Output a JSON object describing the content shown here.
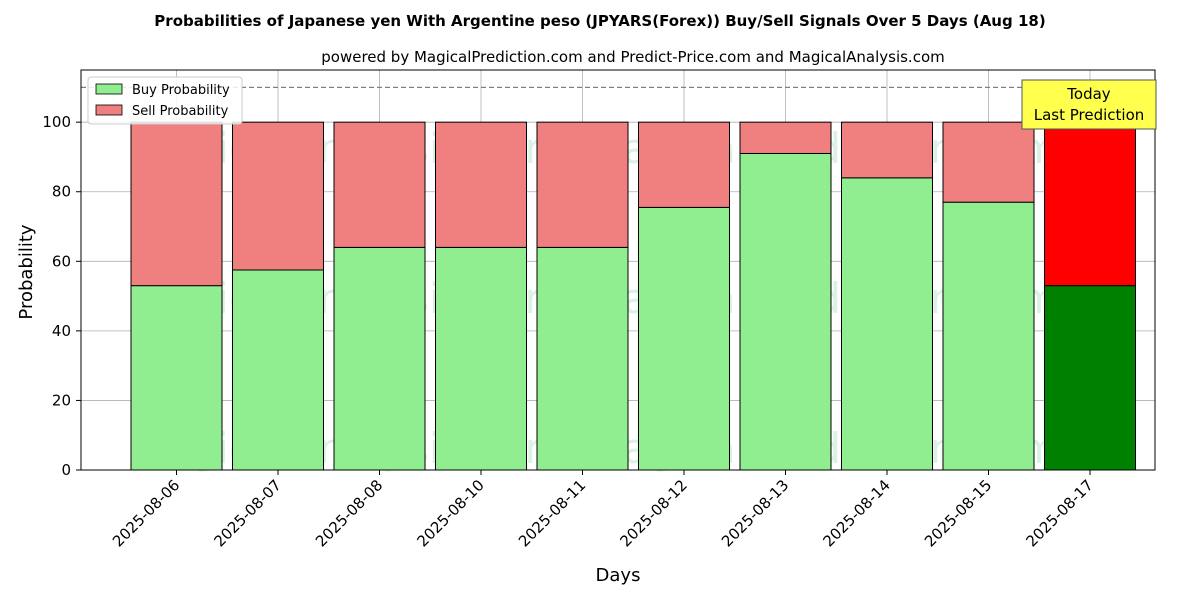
{
  "chart_data": {
    "type": "bar",
    "stacked": true,
    "title": "Probabilities of Japanese yen With Argentine peso (JPYARS(Forex)) Buy/Sell Signals Over 5 Days (Aug 18)",
    "subtitle": "powered by MagicalPrediction.com and Predict-Price.com and MagicalAnalysis.com",
    "xlabel": "Days",
    "ylabel": "Probability",
    "ylim": [
      0,
      115
    ],
    "yticks": [
      "0",
      "20",
      "40",
      "60",
      "80",
      "100"
    ],
    "grid": true,
    "reference_line": 110,
    "categories": [
      "2025-08-06",
      "2025-08-07",
      "2025-08-08",
      "2025-08-10",
      "2025-08-11",
      "2025-08-12",
      "2025-08-13",
      "2025-08-14",
      "2025-08-15",
      "2025-08-17"
    ],
    "series": [
      {
        "name": "Buy Probability",
        "color": "#90ee90",
        "values": [
          53,
          57.5,
          64,
          64,
          64,
          75.5,
          91,
          84,
          77,
          53
        ]
      },
      {
        "name": "Sell Probability",
        "color": "#f08080",
        "values": [
          47,
          42.5,
          36,
          36,
          36,
          24.5,
          9,
          16,
          23,
          47
        ]
      }
    ],
    "highlight": {
      "index": 9,
      "buy_color": "#008000",
      "sell_color": "#ff0000"
    },
    "annotation": {
      "line1": "Today",
      "line2": "Last Prediction",
      "color": "#ffff4d"
    },
    "legend": {
      "position": "top-left",
      "items": [
        "Buy Probability",
        "Sell Probability"
      ]
    },
    "watermarks": [
      "MagicalAnalysis.com",
      "MagicalPrediction.com"
    ]
  }
}
